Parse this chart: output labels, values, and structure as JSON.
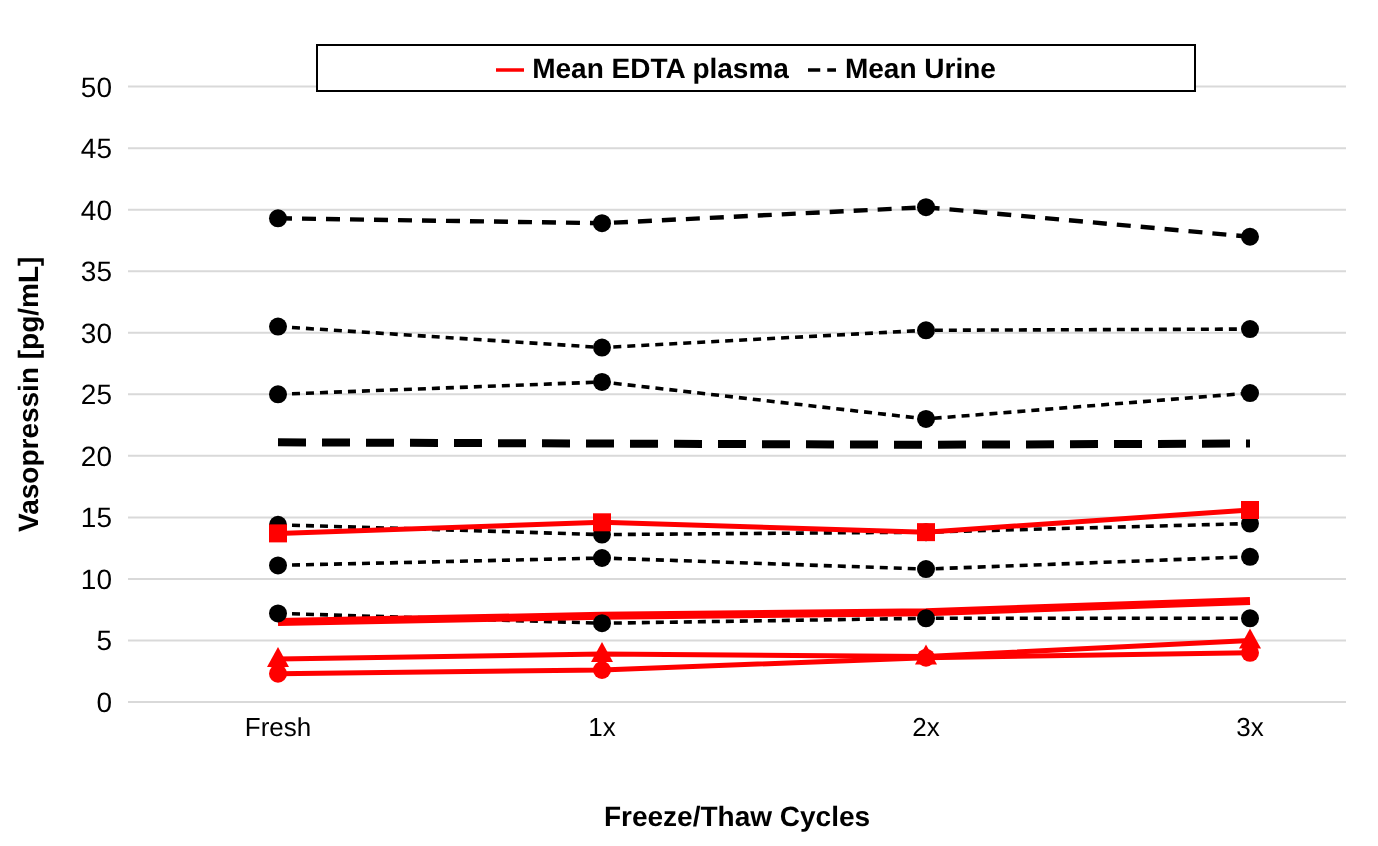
{
  "chart_data": {
    "type": "line",
    "xlabel": "Freeze/Thaw Cycles",
    "ylabel": "Vasopressin [pg/mL]",
    "categories": [
      "Fresh",
      "1x",
      "2x",
      "3x"
    ],
    "ylim": [
      0,
      50
    ],
    "yticks": [
      0,
      5,
      10,
      15,
      20,
      25,
      30,
      35,
      40,
      45,
      50
    ],
    "grid": "y",
    "legend": "top",
    "marker": "circle",
    "series": [
      {
        "color": "#000000",
        "line_style": "dashed",
        "values": [
          39.3,
          38.9,
          40.2,
          37.8
        ]
      },
      {
        "color": "#000000",
        "line_style": "dotted",
        "values": [
          30.5,
          28.8,
          30.2,
          30.3
        ]
      },
      {
        "color": "#000000",
        "line_style": "dotted",
        "values": [
          25.0,
          26.0,
          23.0,
          25.1
        ]
      },
      {
        "name": "Mean Urine",
        "color": "#000000",
        "line_style": "dashed",
        "marker": "none",
        "values": [
          21.1,
          21.0,
          20.9,
          21.0
        ]
      },
      {
        "color": "#000000",
        "line_style": "dotted",
        "values": [
          14.4,
          13.6,
          13.8,
          14.5
        ]
      },
      {
        "color": "#000000",
        "line_style": "dotted",
        "values": [
          11.1,
          11.7,
          10.8,
          11.8
        ]
      },
      {
        "color": "#000000",
        "line_style": "dotted",
        "values": [
          7.2,
          6.4,
          6.8,
          6.8
        ]
      },
      {
        "color": "#ff0000",
        "line_style": "solid",
        "marker": "square",
        "values": [
          13.7,
          14.6,
          13.8,
          15.6
        ]
      },
      {
        "name": "Mean EDTA plasma",
        "color": "#ff0000",
        "line_style": "solid",
        "marker": "none",
        "values": [
          6.5,
          7.0,
          7.3,
          8.2
        ]
      },
      {
        "color": "#ff0000",
        "line_style": "solid",
        "marker": "triangle",
        "values": [
          3.5,
          3.9,
          3.7,
          5.0
        ]
      },
      {
        "color": "#ff0000",
        "line_style": "solid",
        "marker": "circle",
        "values": [
          2.3,
          2.6,
          3.6,
          4.0
        ]
      }
    ]
  }
}
